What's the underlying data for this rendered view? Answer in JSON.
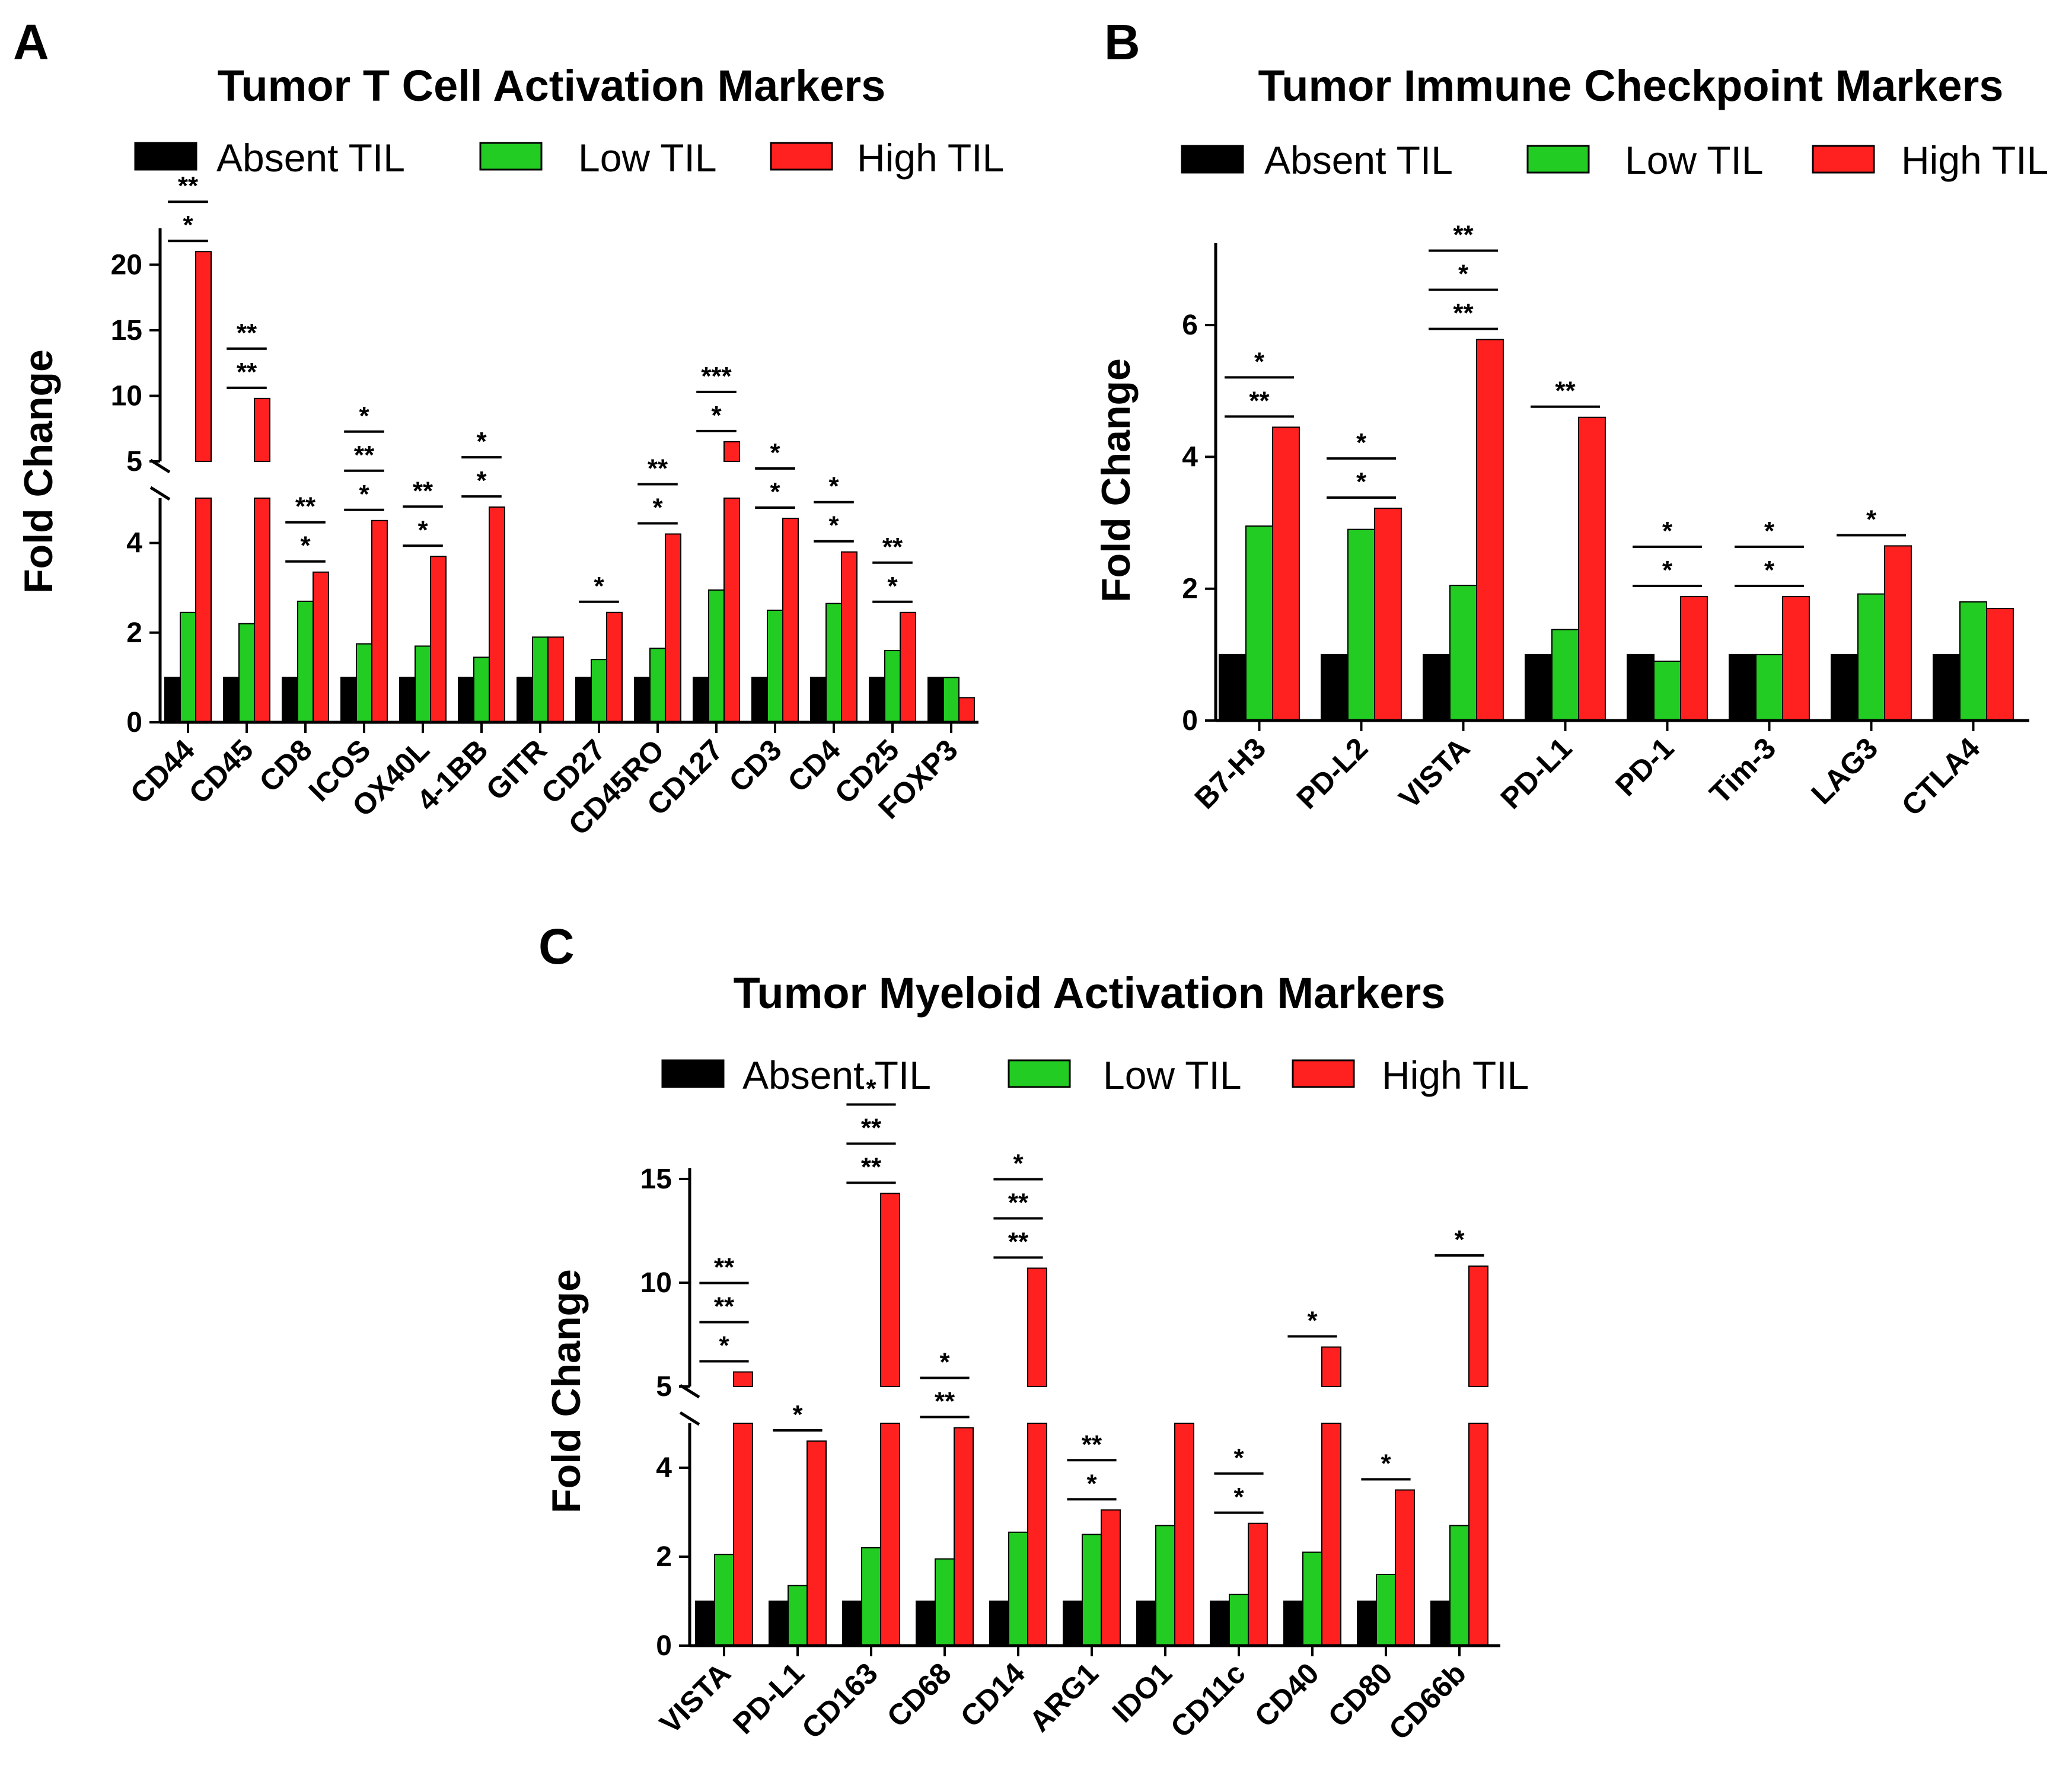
{
  "figure": {
    "panels": [
      {
        "letter": "A",
        "title": "Tumor T Cell Activation Markers"
      },
      {
        "letter": "B",
        "title": "Tumor Immune Checkpoint Markers"
      },
      {
        "letter": "C",
        "title": "Tumor Myeloid Activation Markers"
      }
    ]
  },
  "chart_data": [
    {
      "type": "bar",
      "panel": "A",
      "title": "Tumor T Cell Activation Markers",
      "xlabel": "",
      "ylabel": "Fold Change",
      "legend": [
        "Absent TIL",
        "Low TIL",
        "High TIL"
      ],
      "colors": {
        "Absent TIL": "#000000",
        "Low TIL": "#22cc22",
        "High TIL": "#ff2020"
      },
      "y_axis": {
        "broken": true,
        "lower_range": [
          0,
          5
        ],
        "upper_range": [
          5,
          23
        ],
        "lower_ticks": [
          "0",
          "2",
          "4"
        ],
        "upper_ticks": [
          "5",
          "10",
          "15",
          "20"
        ]
      },
      "categories": [
        "CD44",
        "CD45",
        "CD8",
        "ICOS",
        "OX40L",
        "4-1BB",
        "GITR",
        "CD27",
        "CD45RO",
        "CD127",
        "CD3",
        "CD4",
        "CD25",
        "FOXP3"
      ],
      "series": [
        {
          "name": "Absent TIL",
          "values": [
            1,
            1,
            1,
            1,
            1,
            1,
            1,
            1,
            1,
            1,
            1,
            1,
            1,
            1
          ]
        },
        {
          "name": "Low TIL",
          "values": [
            2.45,
            2.2,
            2.7,
            1.75,
            1.7,
            1.45,
            1.9,
            1.4,
            1.65,
            2.95,
            2.5,
            2.65,
            1.6,
            1.0
          ]
        },
        {
          "name": "High TIL",
          "values": [
            21.0,
            9.8,
            3.35,
            4.5,
            3.7,
            4.8,
            1.9,
            2.45,
            4.2,
            6.5,
            4.55,
            3.8,
            2.45,
            0.55
          ]
        }
      ],
      "significance": [
        {
          "category": "CD44",
          "markers": [
            "**",
            "*"
          ]
        },
        {
          "category": "CD45",
          "markers": [
            "**",
            "**"
          ]
        },
        {
          "category": "CD8",
          "markers": [
            "**",
            "*"
          ]
        },
        {
          "category": "ICOS",
          "markers": [
            "*",
            "**",
            "*"
          ]
        },
        {
          "category": "OX40L",
          "markers": [
            "**",
            "*"
          ]
        },
        {
          "category": "4-1BB",
          "markers": [
            "*",
            "*"
          ]
        },
        {
          "category": "CD27",
          "markers": [
            "*"
          ]
        },
        {
          "category": "CD45RO",
          "markers": [
            "**",
            "*"
          ]
        },
        {
          "category": "CD127",
          "markers": [
            "***",
            "*"
          ]
        },
        {
          "category": "CD3",
          "markers": [
            "*",
            "*"
          ]
        },
        {
          "category": "CD4",
          "markers": [
            "*",
            "*"
          ]
        },
        {
          "category": "CD25",
          "markers": [
            "**",
            "*"
          ]
        }
      ]
    },
    {
      "type": "bar",
      "panel": "B",
      "title": "Tumor Immune Checkpoint Markers",
      "xlabel": "",
      "ylabel": "Fold Change",
      "legend": [
        "Absent TIL",
        "Low TIL",
        "High TIL"
      ],
      "colors": {
        "Absent TIL": "#000000",
        "Low TIL": "#22cc22",
        "High TIL": "#ff2020"
      },
      "ylim": [
        0,
        7
      ],
      "y_ticks": [
        "0",
        "2",
        "4",
        "6"
      ],
      "categories": [
        "B7-H3",
        "PD-L2",
        "VISTA",
        "PD-L1",
        "PD-1",
        "Tim-3",
        "LAG3",
        "CTLA4"
      ],
      "series": [
        {
          "name": "Absent TIL",
          "values": [
            1,
            1,
            1,
            1,
            1,
            1,
            1,
            1
          ]
        },
        {
          "name": "Low TIL",
          "values": [
            2.95,
            2.9,
            2.05,
            1.38,
            0.9,
            1.0,
            1.92,
            1.8
          ]
        },
        {
          "name": "High TIL",
          "values": [
            4.45,
            3.22,
            5.78,
            4.6,
            1.88,
            1.88,
            2.65,
            1.7
          ]
        }
      ],
      "significance": [
        {
          "category": "B7-H3",
          "markers": [
            "*",
            "**"
          ]
        },
        {
          "category": "PD-L2",
          "markers": [
            "*",
            "*"
          ]
        },
        {
          "category": "VISTA",
          "markers": [
            "**",
            "*",
            "**"
          ]
        },
        {
          "category": "PD-L1",
          "markers": [
            "**"
          ]
        },
        {
          "category": "PD-1",
          "markers": [
            "*",
            "*"
          ]
        },
        {
          "category": "Tim-3",
          "markers": [
            "*",
            "*"
          ]
        },
        {
          "category": "LAG3",
          "markers": [
            "*"
          ]
        }
      ]
    },
    {
      "type": "bar",
      "panel": "C",
      "title": "Tumor Myeloid Activation Markers",
      "xlabel": "",
      "ylabel": "Fold Change",
      "legend": [
        "Absent TIL",
        "Low TIL",
        "High TIL"
      ],
      "colors": {
        "Absent TIL": "#000000",
        "Low TIL": "#22cc22",
        "High TIL": "#ff2020"
      },
      "y_axis": {
        "broken": true,
        "lower_range": [
          0,
          5
        ],
        "upper_range": [
          5,
          16
        ],
        "lower_ticks": [
          "0",
          "2",
          "4"
        ],
        "upper_ticks": [
          "5",
          "10",
          "15"
        ]
      },
      "categories": [
        "VISTA",
        "PD-L1",
        "CD163",
        "CD68",
        "CD14",
        "ARG1",
        "IDO1",
        "CD11c",
        "CD40",
        "CD80",
        "CD66b"
      ],
      "series": [
        {
          "name": "Absent TIL",
          "values": [
            1,
            1,
            1,
            1,
            1,
            1,
            1,
            1,
            1,
            1,
            1
          ]
        },
        {
          "name": "Low TIL",
          "values": [
            2.05,
            1.35,
            2.2,
            1.95,
            2.55,
            2.5,
            2.7,
            1.15,
            2.1,
            1.6,
            2.7
          ]
        },
        {
          "name": "High TIL",
          "values": [
            5.7,
            4.6,
            14.3,
            4.9,
            10.7,
            3.05,
            5.0,
            2.75,
            6.9,
            3.5,
            10.8
          ]
        }
      ],
      "significance": [
        {
          "category": "VISTA",
          "markers": [
            "**",
            "**",
            "*"
          ]
        },
        {
          "category": "PD-L1",
          "markers": [
            "*"
          ]
        },
        {
          "category": "CD163",
          "markers": [
            "*",
            "**",
            "**"
          ]
        },
        {
          "category": "CD68",
          "markers": [
            "*",
            "**"
          ]
        },
        {
          "category": "CD14",
          "markers": [
            "*",
            "**",
            "**"
          ]
        },
        {
          "category": "ARG1",
          "markers": [
            "**",
            "*"
          ]
        },
        {
          "category": "CD11c",
          "markers": [
            "*",
            "*"
          ]
        },
        {
          "category": "CD40",
          "markers": [
            "*"
          ]
        },
        {
          "category": "CD80",
          "markers": [
            "*"
          ]
        },
        {
          "category": "CD66b",
          "markers": [
            "*"
          ]
        }
      ]
    }
  ]
}
